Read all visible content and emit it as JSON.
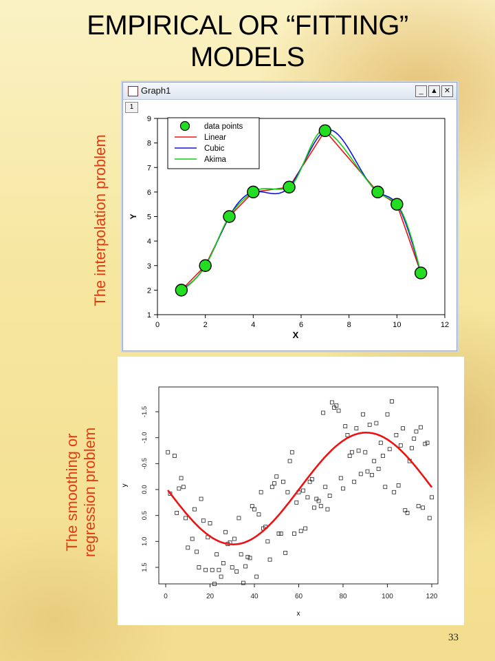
{
  "slide": {
    "title_line1": "EMPIRICAL OR “FITTING”",
    "title_line2": "MODELS",
    "label_interpolation": "The interpolation problem",
    "label_smoothing_line1": "The smoothing or",
    "label_smoothing_line2": "regression problem",
    "page_number": "33"
  },
  "window": {
    "title": "Graph1",
    "tab_label": "1",
    "btn_minimize": "_",
    "btn_restore": "▲",
    "btn_close": "✕"
  },
  "chart_data": [
    {
      "type": "line",
      "xlabel": "X",
      "ylabel": "Y",
      "xlim": [
        0,
        12
      ],
      "ylim": [
        1,
        9
      ],
      "xticks": [
        0,
        2,
        4,
        6,
        8,
        10,
        12
      ],
      "yticks": [
        1,
        2,
        3,
        4,
        5,
        6,
        7,
        8,
        9
      ],
      "legend_position": "top-left",
      "points": {
        "name": "data points",
        "color": "#22dd22",
        "x": [
          1,
          2,
          3,
          4,
          5.5,
          7,
          9.2,
          10,
          11
        ],
        "y": [
          2,
          3,
          5,
          6,
          6.2,
          8.5,
          6,
          5.5,
          2.7
        ]
      },
      "series": [
        {
          "name": "Linear",
          "color": "#ee1111",
          "method": "linear"
        },
        {
          "name": "Cubic",
          "color": "#1111dd",
          "method": "cubic"
        },
        {
          "name": "Akima",
          "color": "#11cc11",
          "method": "akima"
        }
      ]
    },
    {
      "type": "scatter",
      "xlabel": "x",
      "ylabel": "y",
      "xlim": [
        0,
        120
      ],
      "ylim": [
        -1.8,
        1.85
      ],
      "xticks": [
        0,
        20,
        40,
        60,
        80,
        100,
        120
      ],
      "yticks": [
        -1.5,
        -1.0,
        -0.5,
        0.0,
        0.5,
        1.0,
        1.5
      ],
      "ytick_labels": [
        "-1.5",
        "-1.0",
        "-0.5",
        "0.0",
        "0.5",
        "1.0",
        "1.5"
      ],
      "points": {
        "x": [
          1,
          2,
          4,
          5,
          6,
          7,
          8,
          9,
          10,
          12,
          13,
          14,
          15,
          16,
          17,
          18,
          19,
          20,
          21,
          22,
          23,
          24,
          25,
          26,
          27,
          28,
          29,
          30,
          31,
          32,
          33,
          34,
          35,
          36,
          37,
          38,
          39,
          40,
          41,
          42,
          43,
          44,
          45,
          46,
          47,
          48,
          49,
          50,
          51,
          52,
          53,
          54,
          55,
          56,
          57,
          58,
          59,
          60,
          61,
          62,
          63,
          64,
          65,
          66,
          67,
          68,
          69,
          70,
          71,
          72,
          73,
          74,
          75,
          76,
          77,
          78,
          79,
          80,
          81,
          82,
          83,
          84,
          85,
          86,
          87,
          88,
          89,
          90,
          91,
          92,
          93,
          94,
          95,
          96,
          97,
          98,
          99,
          100,
          101,
          102,
          103,
          104,
          105,
          106,
          107,
          108,
          109,
          110,
          111,
          112,
          113,
          114,
          115,
          116,
          117,
          118,
          119,
          120
        ],
        "y": [
          -0.72,
          0.08,
          -0.65,
          0.45,
          -0.02,
          -0.22,
          -0.05,
          0.55,
          1.12,
          0.95,
          0.38,
          1.2,
          1.5,
          0.18,
          0.6,
          1.55,
          0.92,
          0.65,
          1.55,
          1.82,
          1.25,
          1.55,
          1.68,
          1.42,
          0.82,
          1.05,
          1.02,
          1.5,
          0.95,
          1.58,
          0.55,
          1.25,
          1.8,
          1.48,
          1.3,
          1.32,
          0.32,
          0.38,
          1.68,
          0.48,
          0.05,
          0.75,
          0.72,
          1.0,
          1.35,
          -0.05,
          -0.12,
          -0.25,
          0.85,
          0.85,
          -0.15,
          1.22,
          0.05,
          -0.55,
          -0.72,
          0.85,
          0.25,
          0.05,
          0.8,
          0.02,
          0.75,
          0.15,
          -0.15,
          -0.2,
          0.35,
          0.18,
          0.22,
          0.32,
          -1.48,
          -0.05,
          0.38,
          0.12,
          -1.68,
          -1.58,
          -1.62,
          -1.52,
          -0.22,
          -0.02,
          -1.22,
          -1.05,
          -0.65,
          -0.72,
          -0.15,
          -1.18,
          -0.75,
          -0.3,
          -1.45,
          -0.72,
          -0.35,
          -1.25,
          -0.28,
          -0.55,
          -1.28,
          -0.4,
          -0.9,
          -0.65,
          -0.05,
          -1.45,
          -0.78,
          -1.7,
          0.05,
          -1.05,
          -0.08,
          -0.85,
          -1.18,
          0.4,
          0.45,
          -0.55,
          -0.8,
          -0.98,
          -1.12,
          0.32,
          -1.2,
          0.35,
          -0.88,
          -0.9,
          0.55,
          0.15
        ]
      },
      "fit": {
        "color": "#ee1111",
        "amplitude": 0.96,
        "period": 120,
        "offset": 0.12
      }
    }
  ]
}
